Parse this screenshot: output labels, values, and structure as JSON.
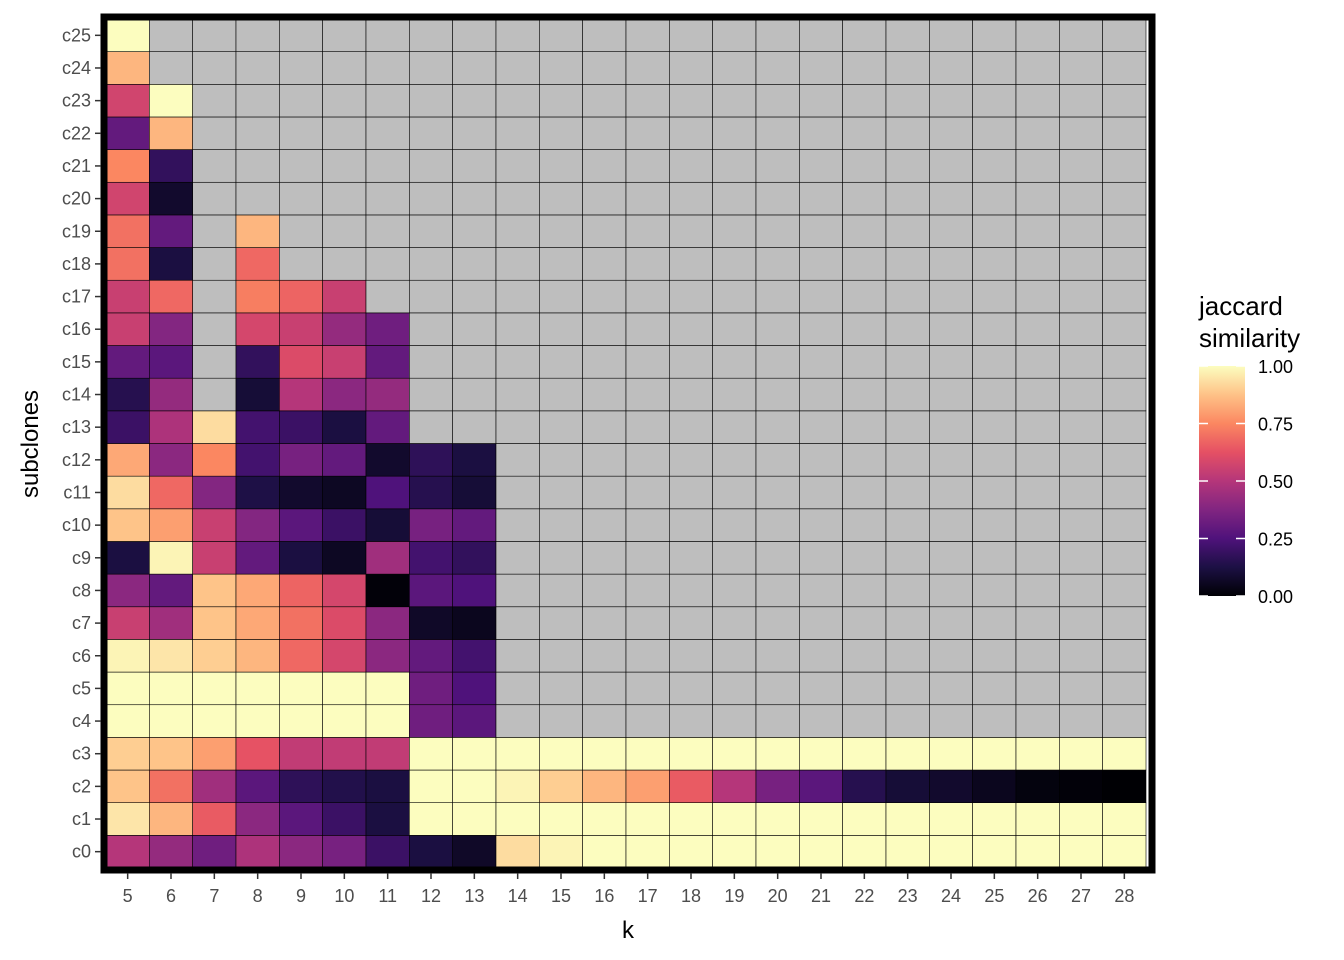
{
  "chart_data": {
    "type": "heatmap",
    "xlabel": "k",
    "ylabel": "subclones",
    "x": [
      5,
      6,
      7,
      8,
      9,
      10,
      11,
      12,
      13,
      14,
      15,
      16,
      17,
      18,
      19,
      20,
      21,
      22,
      23,
      24,
      25,
      26,
      27,
      28
    ],
    "y": [
      "c0",
      "c1",
      "c2",
      "c3",
      "c4",
      "c5",
      "c6",
      "c7",
      "c8",
      "c9",
      "c10",
      "c11",
      "c12",
      "c13",
      "c14",
      "c15",
      "c16",
      "c17",
      "c18",
      "c19",
      "c20",
      "c21",
      "c22",
      "c23",
      "c24",
      "c25"
    ],
    "values": {
      "c0": [
        0.5,
        0.42,
        0.33,
        0.48,
        0.4,
        0.35,
        0.2,
        0.12,
        0.07,
        0.93,
        0.98,
        1,
        1,
        1,
        1,
        1,
        1,
        1,
        1,
        1,
        1,
        1,
        1,
        1
      ],
      "c1": [
        0.95,
        0.85,
        0.65,
        0.4,
        0.28,
        0.2,
        0.12,
        1,
        1,
        1,
        1,
        1,
        1,
        1,
        1,
        1,
        1,
        1,
        1,
        1,
        1,
        1,
        1,
        1
      ],
      "c2": [
        0.88,
        0.7,
        0.45,
        0.28,
        0.17,
        0.14,
        0.12,
        1,
        1,
        0.98,
        0.9,
        0.85,
        0.8,
        0.65,
        0.5,
        0.35,
        0.28,
        0.15,
        0.1,
        0.08,
        0.05,
        0.02,
        0.01,
        0.0
      ],
      "c3": [
        0.9,
        0.88,
        0.8,
        0.63,
        0.53,
        0.53,
        0.53,
        1,
        1,
        1,
        1,
        1,
        1,
        1,
        1,
        1,
        1,
        1,
        1,
        1,
        1,
        1,
        1,
        1
      ],
      "c4": [
        1,
        1,
        1,
        1,
        1,
        1,
        1,
        0.33,
        0.28,
        null,
        null,
        null,
        null,
        null,
        null,
        null,
        null,
        null,
        null,
        null,
        null,
        null,
        null,
        null
      ],
      "c5": [
        1,
        1,
        1,
        1,
        1,
        1,
        1,
        0.33,
        0.25,
        null,
        null,
        null,
        null,
        null,
        null,
        null,
        null,
        null,
        null,
        null,
        null,
        null,
        null,
        null
      ],
      "c6": [
        0.98,
        0.95,
        0.9,
        0.85,
        0.68,
        0.58,
        0.4,
        0.3,
        0.22,
        null,
        null,
        null,
        null,
        null,
        null,
        null,
        null,
        null,
        null,
        null,
        null,
        null,
        null,
        null
      ],
      "c7": [
        0.55,
        0.45,
        0.88,
        0.82,
        0.7,
        0.6,
        0.4,
        0.07,
        0.05,
        null,
        null,
        null,
        null,
        null,
        null,
        null,
        null,
        null,
        null,
        null,
        null,
        null,
        null,
        null
      ],
      "c8": [
        0.4,
        0.3,
        0.88,
        0.82,
        0.67,
        0.58,
        0.01,
        0.28,
        0.25,
        null,
        null,
        null,
        null,
        null,
        null,
        null,
        null,
        null,
        null,
        null,
        null,
        null,
        null,
        null
      ],
      "c9": [
        0.12,
        0.98,
        0.55,
        0.3,
        0.12,
        0.06,
        0.45,
        0.22,
        0.18,
        null,
        null,
        null,
        null,
        null,
        null,
        null,
        null,
        null,
        null,
        null,
        null,
        null,
        null,
        null
      ],
      "c10": [
        0.88,
        0.8,
        0.55,
        0.38,
        0.28,
        0.2,
        0.1,
        0.35,
        0.3,
        null,
        null,
        null,
        null,
        null,
        null,
        null,
        null,
        null,
        null,
        null,
        null,
        null,
        null,
        null
      ],
      "c11": [
        0.93,
        0.68,
        0.38,
        0.13,
        0.08,
        0.06,
        0.25,
        0.15,
        0.1,
        null,
        null,
        null,
        null,
        null,
        null,
        null,
        null,
        null,
        null,
        null,
        null,
        null,
        null,
        null
      ],
      "c12": [
        0.82,
        0.4,
        0.75,
        0.22,
        0.35,
        0.3,
        0.08,
        0.17,
        0.12,
        null,
        null,
        null,
        null,
        null,
        null,
        null,
        null,
        null,
        null,
        null,
        null,
        null,
        null,
        null
      ],
      "c13": [
        0.2,
        0.48,
        0.93,
        0.22,
        0.2,
        0.12,
        0.3,
        null,
        null,
        null,
        null,
        null,
        null,
        null,
        null,
        null,
        null,
        null,
        null,
        null,
        null,
        null,
        null,
        null
      ],
      "c14": [
        0.15,
        0.42,
        null,
        0.1,
        0.5,
        0.4,
        0.42,
        null,
        null,
        null,
        null,
        null,
        null,
        null,
        null,
        null,
        null,
        null,
        null,
        null,
        null,
        null,
        null,
        null
      ],
      "c15": [
        0.3,
        0.28,
        null,
        0.18,
        0.6,
        0.55,
        0.3,
        null,
        null,
        null,
        null,
        null,
        null,
        null,
        null,
        null,
        null,
        null,
        null,
        null,
        null,
        null,
        null,
        null
      ],
      "c16": [
        0.55,
        0.38,
        null,
        0.58,
        0.55,
        0.42,
        0.33,
        null,
        null,
        null,
        null,
        null,
        null,
        null,
        null,
        null,
        null,
        null,
        null,
        null,
        null,
        null,
        null,
        null
      ],
      "c17": [
        0.55,
        0.68,
        null,
        0.73,
        0.67,
        0.55,
        null,
        null,
        null,
        null,
        null,
        null,
        null,
        null,
        null,
        null,
        null,
        null,
        null,
        null,
        null,
        null,
        null,
        null
      ],
      "c18": [
        0.7,
        0.12,
        null,
        0.68,
        null,
        null,
        null,
        null,
        null,
        null,
        null,
        null,
        null,
        null,
        null,
        null,
        null,
        null,
        null,
        null,
        null,
        null,
        null,
        null
      ],
      "c19": [
        0.7,
        0.3,
        null,
        0.85,
        null,
        null,
        null,
        null,
        null,
        null,
        null,
        null,
        null,
        null,
        null,
        null,
        null,
        null,
        null,
        null,
        null,
        null,
        null,
        null
      ],
      "c20": [
        0.57,
        0.08,
        null,
        null,
        null,
        null,
        null,
        null,
        null,
        null,
        null,
        null,
        null,
        null,
        null,
        null,
        null,
        null,
        null,
        null,
        null,
        null,
        null,
        null
      ],
      "c21": [
        0.75,
        0.18,
        null,
        null,
        null,
        null,
        null,
        null,
        null,
        null,
        null,
        null,
        null,
        null,
        null,
        null,
        null,
        null,
        null,
        null,
        null,
        null,
        null,
        null
      ],
      "c22": [
        0.3,
        0.85,
        null,
        null,
        null,
        null,
        null,
        null,
        null,
        null,
        null,
        null,
        null,
        null,
        null,
        null,
        null,
        null,
        null,
        null,
        null,
        null,
        null,
        null
      ],
      "c23": [
        0.57,
        1,
        null,
        null,
        null,
        null,
        null,
        null,
        null,
        null,
        null,
        null,
        null,
        null,
        null,
        null,
        null,
        null,
        null,
        null,
        null,
        null,
        null,
        null
      ],
      "c24": [
        0.85,
        null,
        null,
        null,
        null,
        null,
        null,
        null,
        null,
        null,
        null,
        null,
        null,
        null,
        null,
        null,
        null,
        null,
        null,
        null,
        null,
        null,
        null,
        null
      ],
      "c25": [
        1,
        null,
        null,
        null,
        null,
        null,
        null,
        null,
        null,
        null,
        null,
        null,
        null,
        null,
        null,
        null,
        null,
        null,
        null,
        null,
        null,
        null,
        null,
        null
      ]
    },
    "color_scale": {
      "name": "magma",
      "range": [
        0,
        1
      ],
      "na_color": "#bebebe"
    },
    "legend": {
      "title_line1": "jaccard",
      "title_line2": "similarity",
      "position": "right",
      "ticks": [
        "1.00",
        "0.75",
        "0.50",
        "0.25",
        "0.00"
      ]
    }
  }
}
